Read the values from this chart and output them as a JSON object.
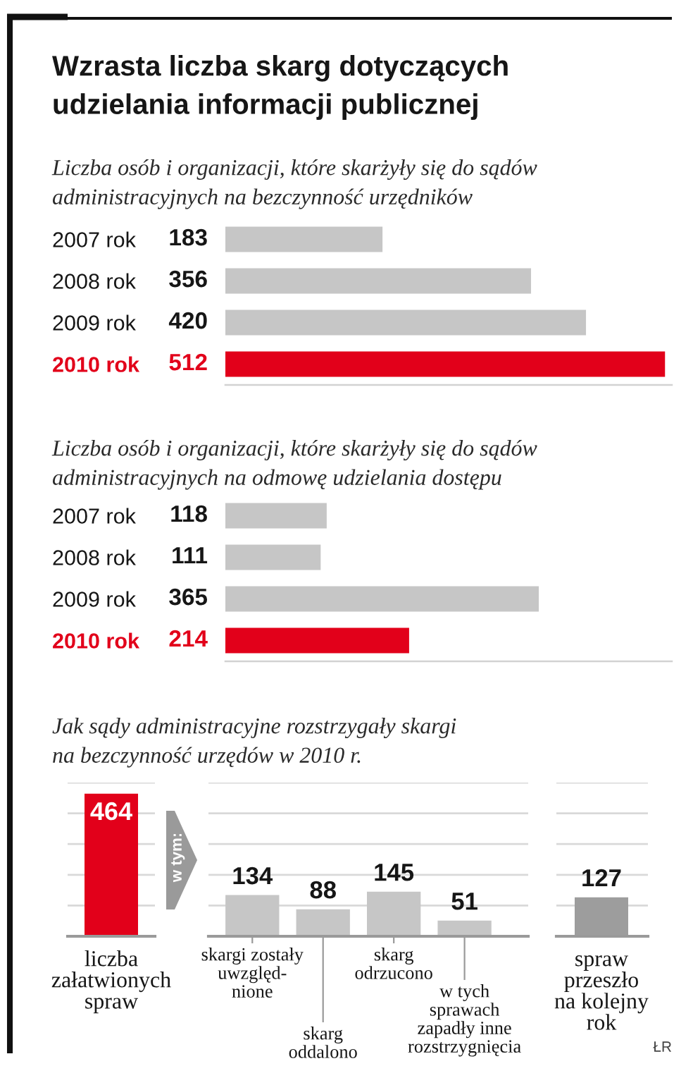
{
  "chart_data": [
    {
      "type": "bar",
      "orientation": "horizontal",
      "title": "Wzrasta liczba skarg dotyczących\nudzielania informacji publicznej",
      "subtitle": "Liczba osób i organizacji, które skarżyły się do sądów\nadministracyjnych na bezczynność urzędników",
      "categories": [
        "2007 rok",
        "2008 rok",
        "2009 rok",
        "2010 rok"
      ],
      "values": [
        183,
        356,
        420,
        512
      ],
      "colors": [
        "#c6c6c6",
        "#c6c6c6",
        "#c6c6c6",
        "#e2001a"
      ],
      "xlim": [
        0,
        520
      ],
      "data_labels": true,
      "tick_labels": "y"
    },
    {
      "type": "bar",
      "orientation": "horizontal",
      "subtitle": "Liczba osób i organizacji, które skarżyły się do sądów\nadministracyjnych na odmowę udzielania dostępu",
      "categories": [
        "2007 rok",
        "2008 rok",
        "2009 rok",
        "2010 rok"
      ],
      "values": [
        118,
        111,
        365,
        214
      ],
      "colors": [
        "#c6c6c6",
        "#c6c6c6",
        "#c6c6c6",
        "#e2001a"
      ],
      "xlim": [
        0,
        520
      ],
      "data_labels": true,
      "tick_labels": "y"
    },
    {
      "type": "bar",
      "subtitle": "Jak sądy administracyjne rozstrzygały skargi\nna bezczynność urzędów w 2010 r.",
      "categories": [
        "liczba\nzałatwionych\nspraw"
      ],
      "values": [
        464
      ],
      "colors": [
        "#e2001a"
      ],
      "ylim": [
        0,
        500
      ],
      "yticks": [
        {
          "value": 0,
          "label": null
        },
        {
          "value": 100,
          "label": null
        },
        {
          "value": 200,
          "label": null
        },
        {
          "value": 300,
          "label": null
        },
        {
          "value": 400,
          "label": null
        },
        {
          "value": 500,
          "label": null
        }
      ],
      "grid": "y",
      "tick_labels": "x",
      "data_labels": true
    },
    {
      "type": "bar",
      "categories": [
        "skargi zostały\nuwzględ-\nnione",
        "skarg\noddalono",
        "skarg\nodrzucono",
        "w tych\nsprawach\nzapadły inne\nrozstrzygnięcia"
      ],
      "values": [
        134,
        88,
        145,
        51
      ],
      "colors": [
        "#c6c6c6",
        "#c6c6c6",
        "#c6c6c6",
        "#c6c6c6"
      ],
      "ylim": [
        0,
        500
      ],
      "yticks": [
        {
          "value": 0,
          "label": null
        },
        {
          "value": 100,
          "label": null
        },
        {
          "value": 200,
          "label": null
        },
        {
          "value": 300,
          "label": null
        },
        {
          "value": 400,
          "label": null
        },
        {
          "value": 500,
          "label": null
        }
      ],
      "grid": "y",
      "tick_labels": "x",
      "data_labels": true,
      "annotations": [
        "w tym:"
      ]
    },
    {
      "type": "bar",
      "categories": [
        "spraw\nprzeszło\nna kolejny\nrok"
      ],
      "values": [
        127
      ],
      "colors": [
        "#9d9d9d"
      ],
      "ylim": [
        0,
        500
      ],
      "yticks": [
        {
          "value": 0,
          "label": null
        },
        {
          "value": 100,
          "label": null
        },
        {
          "value": 200,
          "label": null
        },
        {
          "value": 300,
          "label": null
        },
        {
          "value": 400,
          "label": null
        },
        {
          "value": 500,
          "label": null
        }
      ],
      "grid": "y",
      "tick_labels": "x",
      "data_labels": true,
      "annotations": [
        "ŁR"
      ]
    }
  ]
}
